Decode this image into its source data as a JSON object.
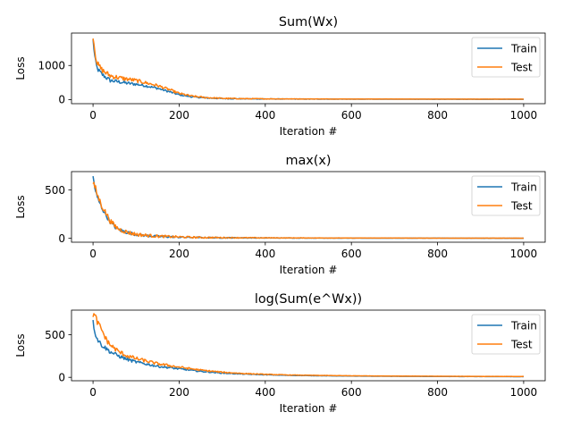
{
  "chart_data": [
    {
      "type": "line",
      "title": "Sum(Wx)",
      "xlabel": "Iteration #",
      "ylabel": "Loss",
      "xlim": [
        -50,
        1050
      ],
      "ylim": [
        -120,
        1950
      ],
      "xticks": [
        0,
        200,
        400,
        600,
        800,
        1000
      ],
      "yticks": [
        0,
        1000
      ],
      "legend": "upper-right",
      "grid": false,
      "series": [
        {
          "name": "Train",
          "color": "#1f77b4",
          "x": [
            0,
            5,
            10,
            20,
            30,
            40,
            60,
            80,
            100,
            120,
            150,
            180,
            200,
            230,
            260,
            300,
            350,
            400,
            500,
            600,
            700,
            800,
            900,
            1000
          ],
          "y": [
            1750,
            1150,
            900,
            750,
            650,
            560,
            520,
            480,
            450,
            410,
            330,
            220,
            140,
            80,
            50,
            30,
            22,
            18,
            14,
            12,
            11,
            10,
            9,
            9
          ]
        },
        {
          "name": "Test",
          "color": "#ff7f0e",
          "x": [
            0,
            5,
            10,
            20,
            30,
            40,
            60,
            80,
            100,
            120,
            150,
            180,
            200,
            230,
            260,
            300,
            350,
            400,
            500,
            600,
            700,
            800,
            900,
            1000
          ],
          "y": [
            1880,
            1350,
            1050,
            880,
            780,
            700,
            640,
            600,
            560,
            500,
            410,
            280,
            180,
            100,
            60,
            35,
            26,
            22,
            18,
            16,
            15,
            14,
            13,
            13
          ]
        }
      ]
    },
    {
      "type": "line",
      "title": "max(x)",
      "xlabel": "Iteration #",
      "ylabel": "Loss",
      "xlim": [
        -50,
        1050
      ],
      "ylim": [
        -40,
        690
      ],
      "xticks": [
        0,
        200,
        400,
        600,
        800,
        1000
      ],
      "yticks": [
        0,
        500
      ],
      "legend": "upper-right",
      "grid": false,
      "series": [
        {
          "name": "Train",
          "color": "#1f77b4",
          "x": [
            0,
            5,
            10,
            20,
            30,
            40,
            50,
            60,
            80,
            100,
            120,
            150,
            200,
            250,
            300,
            400,
            500,
            600,
            700,
            800,
            900,
            1000
          ],
          "y": [
            640,
            500,
            420,
            320,
            240,
            170,
            120,
            90,
            60,
            40,
            30,
            20,
            12,
            8,
            6,
            4,
            3,
            2,
            2,
            2,
            1,
            1
          ]
        },
        {
          "name": "Test",
          "color": "#ff7f0e",
          "x": [
            0,
            5,
            10,
            20,
            30,
            40,
            50,
            60,
            80,
            100,
            120,
            150,
            200,
            250,
            300,
            400,
            500,
            600,
            700,
            800,
            900,
            1000
          ],
          "y": [
            560,
            530,
            450,
            340,
            260,
            180,
            130,
            95,
            62,
            42,
            32,
            22,
            14,
            9,
            7,
            5,
            4,
            3,
            3,
            2,
            2,
            2
          ]
        }
      ]
    },
    {
      "type": "line",
      "title": "log(Sum(e^Wx))",
      "xlabel": "Iteration #",
      "ylabel": "Loss",
      "xlim": [
        -50,
        1050
      ],
      "ylim": [
        -40,
        790
      ],
      "xticks": [
        0,
        200,
        400,
        600,
        800,
        1000
      ],
      "yticks": [
        0,
        500
      ],
      "legend": "upper-right",
      "grid": false,
      "series": [
        {
          "name": "Train",
          "color": "#1f77b4",
          "x": [
            0,
            5,
            10,
            20,
            30,
            40,
            60,
            80,
            100,
            150,
            200,
            250,
            300,
            350,
            400,
            450,
            500,
            600,
            700,
            800,
            900,
            1000
          ],
          "y": [
            650,
            520,
            450,
            380,
            340,
            300,
            250,
            210,
            180,
            130,
            100,
            70,
            50,
            38,
            30,
            24,
            20,
            15,
            12,
            10,
            9,
            8
          ]
        },
        {
          "name": "Test",
          "color": "#ff7f0e",
          "x": [
            0,
            5,
            10,
            20,
            30,
            40,
            60,
            80,
            100,
            150,
            200,
            250,
            300,
            350,
            400,
            450,
            500,
            600,
            700,
            800,
            900,
            1000
          ],
          "y": [
            740,
            720,
            650,
            560,
            450,
            380,
            300,
            250,
            220,
            160,
            120,
            85,
            60,
            45,
            35,
            28,
            24,
            18,
            15,
            13,
            11,
            10
          ]
        }
      ]
    }
  ]
}
